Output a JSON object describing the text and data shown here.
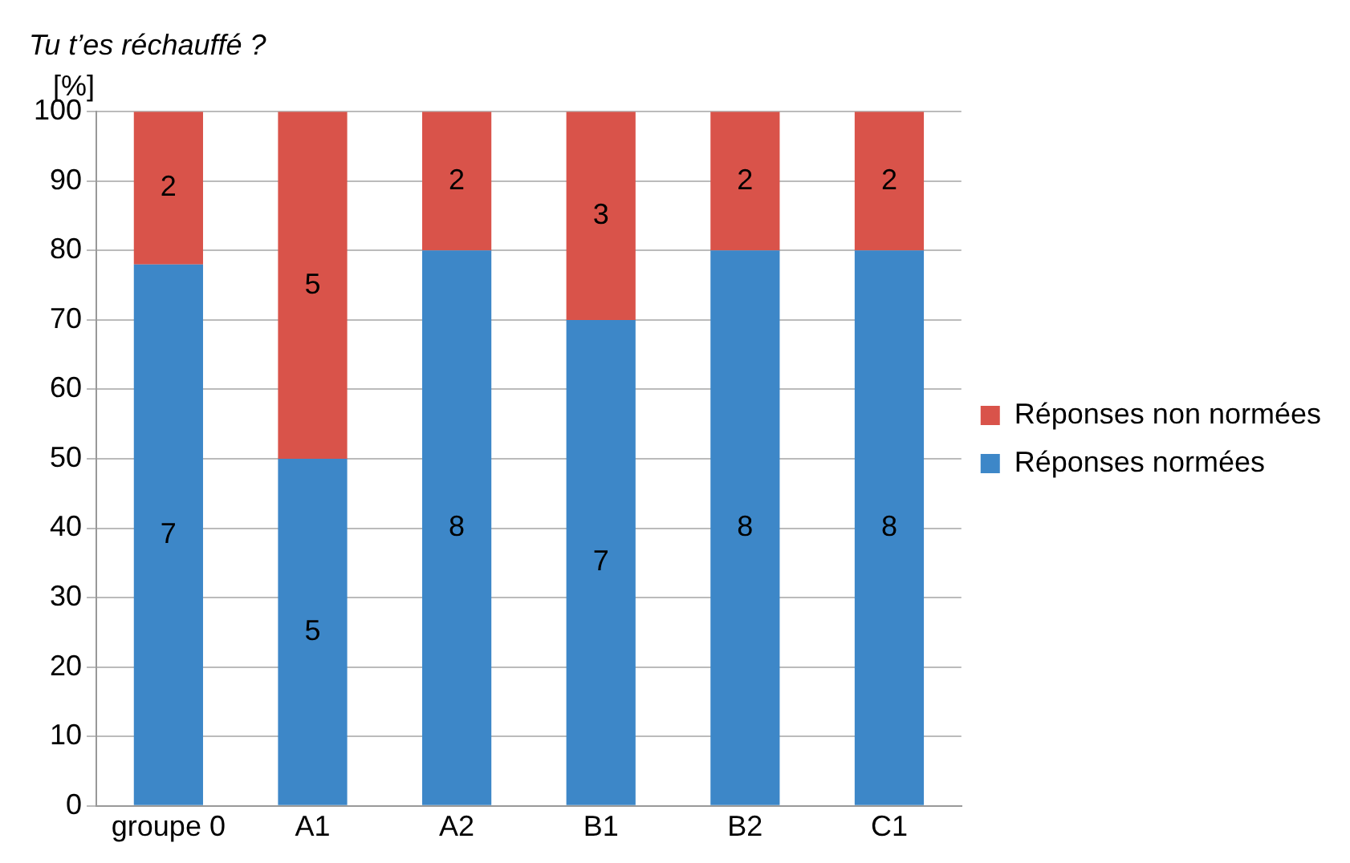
{
  "chart_data": {
    "type": "bar",
    "title": "Tu t’es réchauffé ?",
    "ylabel": "[%]",
    "categories": [
      "groupe 0",
      "A1",
      "A2",
      "B1",
      "B2",
      "C1"
    ],
    "stacked": true,
    "series": [
      {
        "name": "Réponses normées",
        "color": "#3d87c8",
        "values": [
          78,
          50,
          80,
          70,
          80,
          80
        ]
      },
      {
        "name": "Réponses non normées",
        "color": "#d9534a",
        "values": [
          22,
          50,
          20,
          30,
          20,
          20
        ]
      }
    ],
    "annotations": [
      "7",
      "2",
      "5",
      "5",
      "8",
      "2",
      "7",
      "3",
      "8",
      "2",
      "8",
      "2"
    ],
    "ylim": [
      0,
      100
    ],
    "yticks": [
      0,
      10,
      20,
      30,
      40,
      50,
      60,
      70,
      80,
      90,
      100
    ],
    "grid": "y",
    "legend": "right"
  }
}
